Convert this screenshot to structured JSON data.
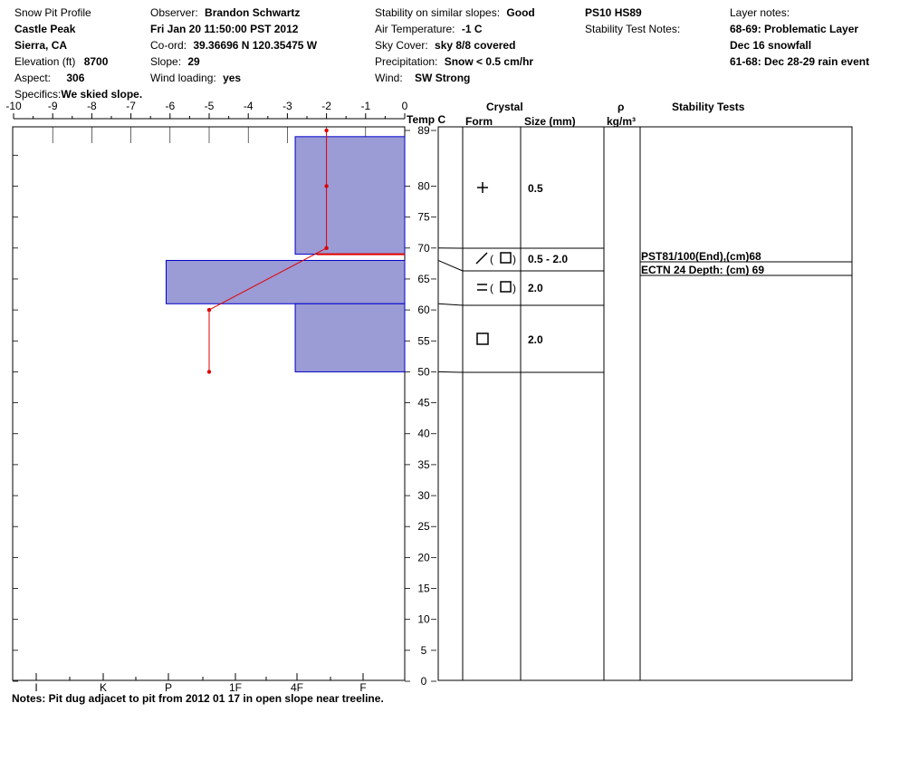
{
  "header": {
    "title": "Snow Pit Profile",
    "location": "Castle Peak",
    "region": "Sierra, CA",
    "elevation_label": "Elevation (ft)",
    "elevation_value": "8700",
    "aspect_label": "Aspect:",
    "aspect_value": "306",
    "specifics_label": "Specifics:",
    "specifics_value": "We skied slope.",
    "observer_label": "Observer:",
    "observer_value": "Brandon Schwartz",
    "datetime": "Fri Jan 20 11:50:00 PST 2012",
    "coord_label": "Co-ord:",
    "coord_value": "39.36696 N 120.35475 W",
    "slope_label": "Slope:",
    "slope_value": "29",
    "wind_loading_label": "Wind loading:",
    "wind_loading_value": "yes",
    "stability_label": "Stability on similar slopes:",
    "stability_value": "Good",
    "air_temp_label": "Air Temperature:",
    "air_temp_value": "-1 C",
    "sky_label": "Sky Cover:",
    "sky_value": "sky 8/8 covered",
    "precip_label": "Precipitation:",
    "precip_value": "Snow < 0.5 cm/hr",
    "wind_label": "Wind:",
    "wind_value": "SW Strong",
    "ps_hs": "PS10 HS89",
    "stability_test_notes_label": "Stability Test Notes:",
    "layer_notes_label": "Layer notes:",
    "layer_notes": [
      "68-69: Problematic Layer",
      "Dec 16 snowfall",
      "61-68: Dec 28-29 rain event"
    ]
  },
  "columns": {
    "temp": "Temp C",
    "crystal": "Crystal",
    "form": "Form",
    "size": "Size (mm)",
    "rho": "ρ",
    "density_unit": "kg/m³",
    "stability_tests": "Stability Tests"
  },
  "notes": "Notes:  Pit dug adjacet to pit from 2012 01 17 in open slope near treeline.",
  "chart_data": {
    "type": "snow-profile",
    "temperature_axis": {
      "ticks": [
        "-10",
        "-9",
        "-8",
        "-7",
        "-6",
        "-5",
        "-4",
        "-3",
        "-2",
        "-1",
        "0"
      ],
      "range": [
        -10,
        0
      ]
    },
    "height_axis": {
      "ticks": [
        "0",
        "5",
        "10",
        "15",
        "20",
        "25",
        "30",
        "35",
        "40",
        "45",
        "50",
        "55",
        "60",
        "65",
        "70",
        "75",
        "80",
        "89"
      ],
      "range": [
        0,
        89
      ]
    },
    "hardness_axis": {
      "ticks": [
        "I",
        "K",
        "P",
        "1F",
        "4F",
        "F"
      ]
    },
    "hardness_layers": [
      {
        "bottom": 69,
        "top": 88,
        "hardness_temp_equiv": -2.8
      },
      {
        "bottom": 61,
        "top": 68,
        "hardness_temp_equiv": -6.1
      },
      {
        "bottom": 50,
        "top": 61,
        "hardness_temp_equiv": -2.8
      }
    ],
    "temperature_profile": [
      {
        "height": 89,
        "temp": -2.0
      },
      {
        "height": 80,
        "temp": -2.0
      },
      {
        "height": 70,
        "temp": -2.0
      },
      {
        "height": 60,
        "temp": -5.0
      },
      {
        "height": 50,
        "temp": -5.0
      }
    ],
    "weak_layer_height": 69,
    "crystal_layers": [
      {
        "bottom": 70,
        "top": 89,
        "form": "+",
        "size": "0.5"
      },
      {
        "bottom": 68,
        "top": 70,
        "form": "/(□)",
        "size": "0.5 - 2.0"
      },
      {
        "bottom": 61,
        "top": 68,
        "form": "=(□)",
        "size": "2.0"
      },
      {
        "bottom": 50,
        "top": 61,
        "form": "□",
        "size": "2.0"
      }
    ],
    "stability_tests": [
      {
        "text": "PST81/100(End),(cm)68"
      },
      {
        "text": "ECTN 24   Depth: (cm) 69"
      }
    ]
  }
}
